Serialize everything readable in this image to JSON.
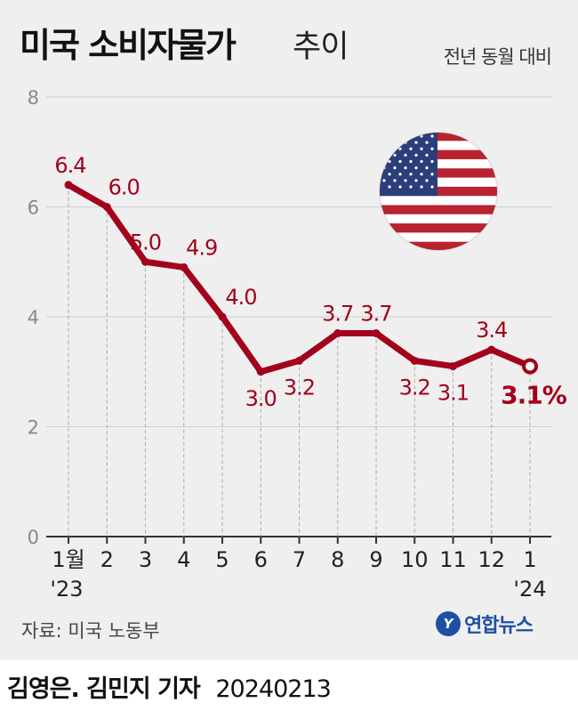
{
  "header": {
    "title_main": "미국 소비자물가",
    "title_sub": "추이",
    "subtitle_right": "전년 동월 대비"
  },
  "chart_data": {
    "type": "line",
    "ylim": [
      0,
      8
    ],
    "yticks": [
      "0",
      "2",
      "4",
      "6",
      "8"
    ],
    "categories": [
      "1월",
      "2",
      "3",
      "4",
      "5",
      "6",
      "7",
      "8",
      "9",
      "10",
      "11",
      "12",
      "1"
    ],
    "year_labels": [
      "'23",
      "'24"
    ],
    "values": [
      6.4,
      6.0,
      5.0,
      4.9,
      4.0,
      3.0,
      3.2,
      3.7,
      3.7,
      3.2,
      3.1,
      3.4,
      3.1
    ],
    "data_labels": [
      "6.4",
      "6.0",
      "5.0",
      "4.9",
      "4.0",
      "3.0",
      "3.2",
      "3.7",
      "3.7",
      "3.2",
      "3.1",
      "3.4",
      "3.1%"
    ],
    "grid": true,
    "line_color": "#a3001b",
    "image": "us-flag"
  },
  "footer": {
    "source": "자료: 미국 노동부",
    "logo_text": "연합뉴스",
    "credit_name": "김영은. 김민지 기자",
    "credit_date": "20240213"
  }
}
